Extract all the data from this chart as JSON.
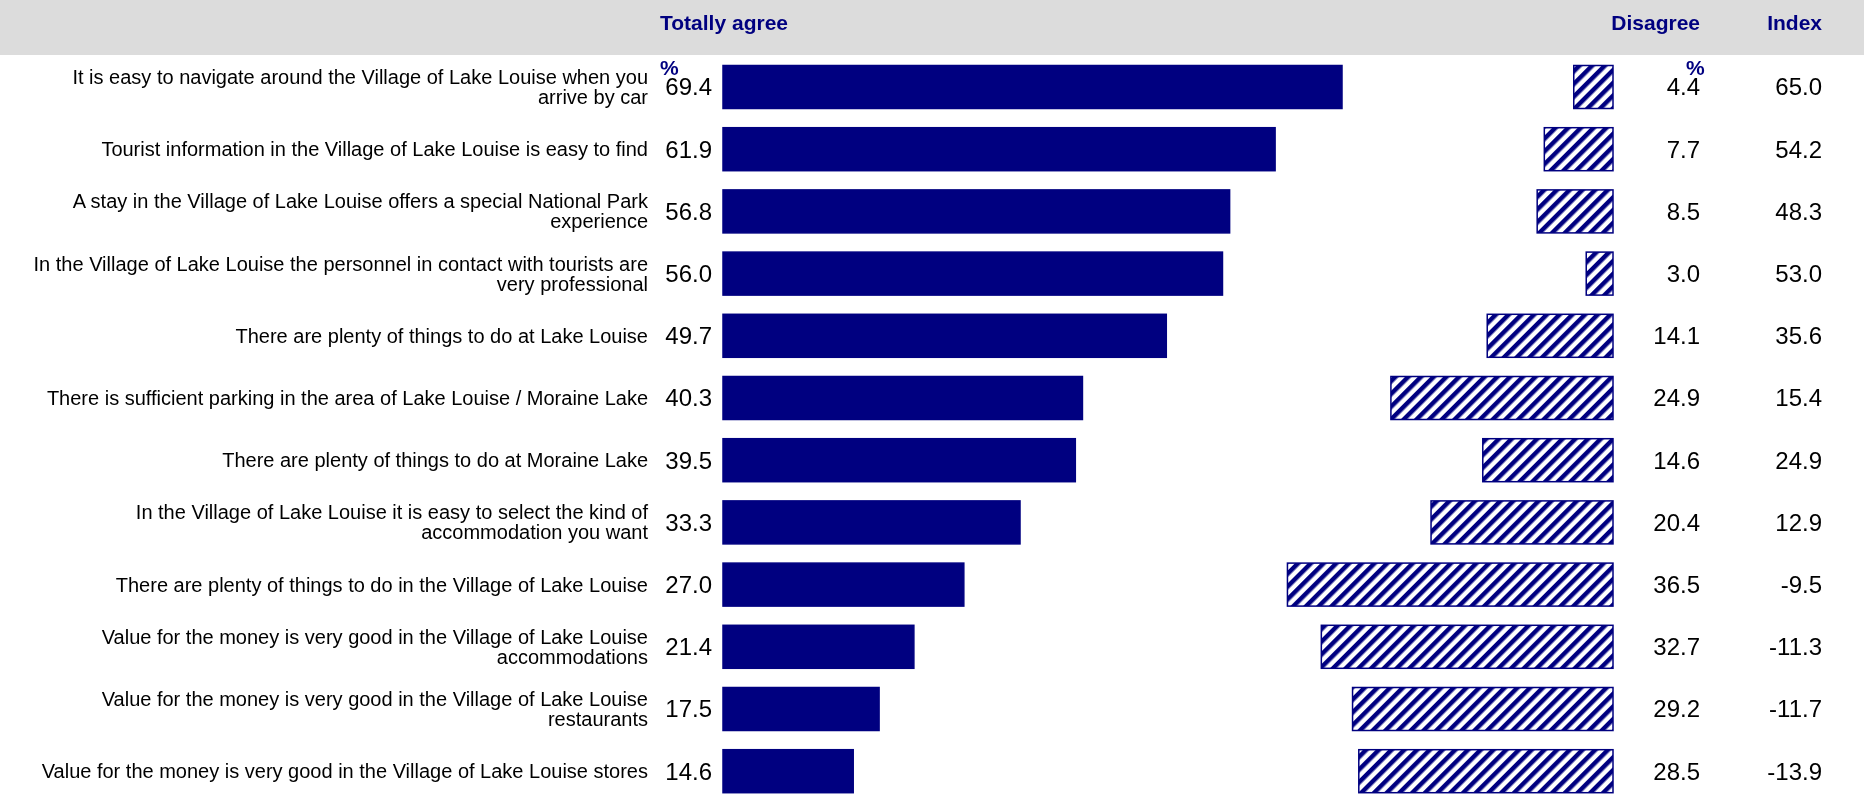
{
  "chart_data": [
    {
      "type": "bar",
      "orientation": "horizontal",
      "xlabel": "%",
      "categories": [
        "It is easy to navigate around the Village of Lake Louise when you arrive by car",
        "Tourist information in the Village of Lake Louise is easy to find",
        "A stay in the Village of Lake Louise offers a special National Park experience",
        "In the Village of Lake Louise the personnel in contact with tourists are very professional",
        "There are plenty of things to do at Lake Louise",
        "There is sufficient parking in the area of Lake Louise / Moraine Lake",
        "There are plenty of things to do at Moraine Lake",
        "In the Village of Lake Louise it is easy to select the kind of accommodation you want",
        "There are plenty of things to do in the Village of Lake Louise",
        "Value for the money is very good in the Village of Lake Louise accommodations",
        "Value for the money is very good in the Village of Lake Louise restaurants",
        "Value for the money is very good in the Village of Lake Louise stores"
      ],
      "series": [
        {
          "name": "Totally agree",
          "color": "#000080",
          "values": [
            69.4,
            61.9,
            56.8,
            56.0,
            49.7,
            40.3,
            39.5,
            33.3,
            27.0,
            21.4,
            17.5,
            14.6
          ],
          "value_labels": [
            "69.4",
            "61.9",
            "56.8",
            "56.0",
            "49.7",
            "40.3",
            "39.5",
            "33.3",
            "27.0",
            "21.4",
            "17.5",
            "14.6"
          ]
        }
      ]
    },
    {
      "type": "bar",
      "orientation": "horizontal",
      "xlabel": "%",
      "categories": [
        null,
        null,
        null,
        null,
        null,
        null,
        null,
        null,
        null,
        null,
        null,
        null
      ],
      "series": [
        {
          "name": "Disagree",
          "color": "#000080",
          "values": [
            4.4,
            7.7,
            8.5,
            3.0,
            14.1,
            24.9,
            14.6,
            20.4,
            36.5,
            32.7,
            29.2,
            28.5
          ],
          "value_labels": [
            "4.4",
            "7.7",
            "8.5",
            "3.0",
            "14.1",
            "24.9",
            "14.6",
            "20.4",
            "36.5",
            "32.7",
            "29.2",
            "28.5"
          ]
        }
      ]
    },
    {
      "type": "other",
      "title": "Index",
      "categories": [
        null,
        null,
        null,
        null,
        null,
        null,
        null,
        null,
        null,
        null,
        null,
        null
      ],
      "value_labels": [
        "65.0",
        "54.2",
        "48.3",
        "53.0",
        "35.6",
        "15.4",
        "24.9",
        "12.9",
        "-9.5",
        "-11.3",
        "-11.7",
        "-13.9"
      ]
    }
  ]
}
